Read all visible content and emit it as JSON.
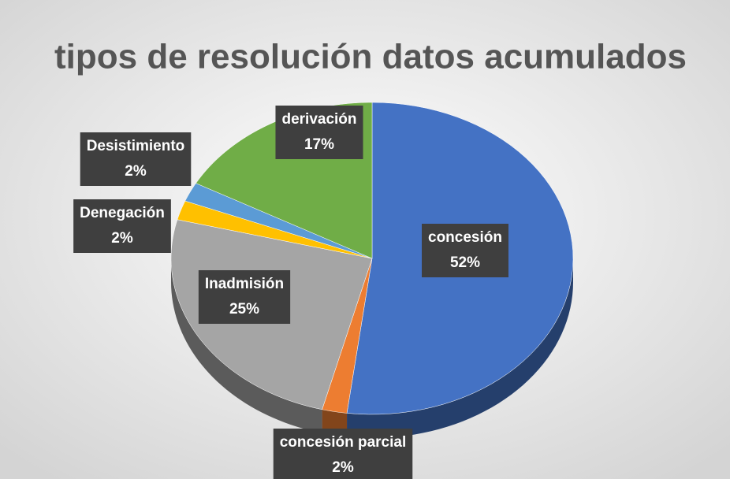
{
  "chart_data": {
    "type": "pie",
    "title": "tipos de resolución datos acumulados",
    "categories": [
      "concesión",
      "concesión parcial",
      "Inadmisión",
      "Denegación",
      "Desistimiento",
      "derivación"
    ],
    "values": [
      52,
      2,
      25,
      2,
      2,
      17
    ],
    "value_labels": [
      "52%",
      "2%",
      "25%",
      "2%",
      "2%",
      "17%"
    ],
    "colors": [
      "#4472c4",
      "#ed7d31",
      "#a5a5a5",
      "#ffc000",
      "#5b9bd5",
      "#70ad47"
    ]
  }
}
